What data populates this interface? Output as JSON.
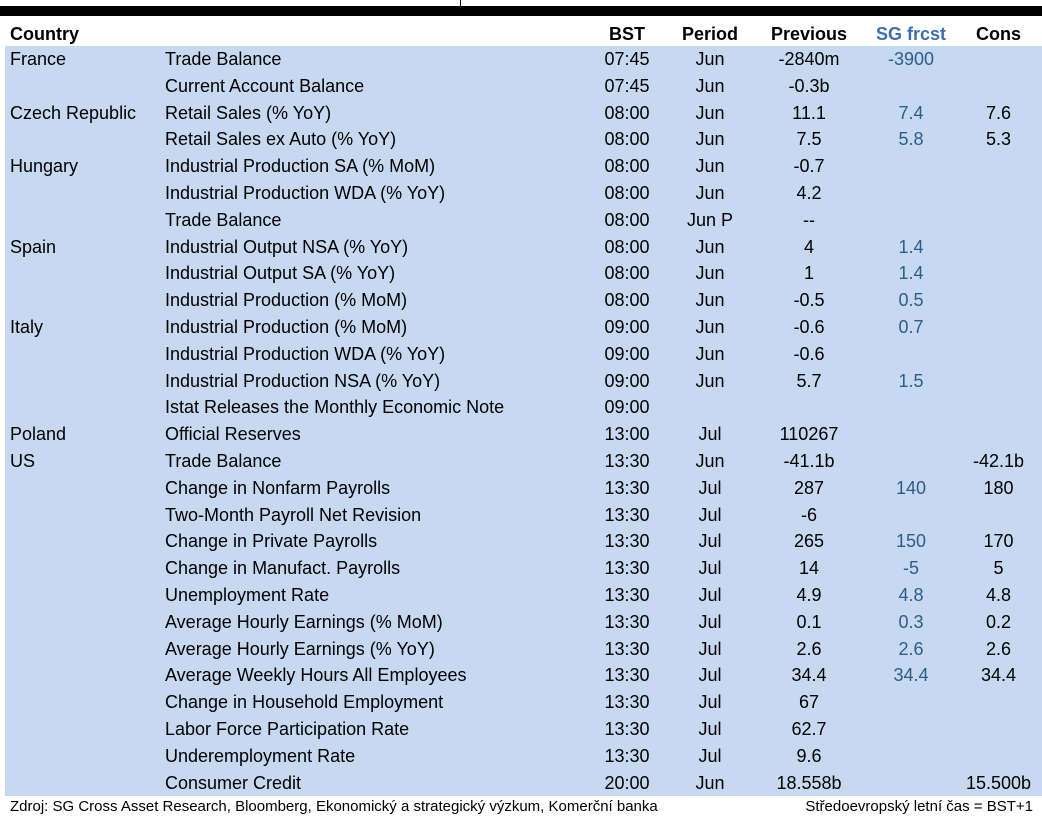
{
  "header": {
    "country": "Country",
    "bst": "BST",
    "period": "Period",
    "previous": "Previous",
    "sg_forecast": "SG frcst",
    "consensus": "Cons"
  },
  "rows": [
    {
      "country": "France",
      "indicator": "Trade Balance",
      "bst": "07:45",
      "period": "Jun",
      "previous": "-2840m",
      "sg": "-3900",
      "cons": ""
    },
    {
      "country": "",
      "indicator": "Current Account Balance",
      "bst": "07:45",
      "period": "Jun",
      "previous": "-0.3b",
      "sg": "",
      "cons": ""
    },
    {
      "country": "Czech Republic",
      "indicator": "Retail Sales (% YoY)",
      "bst": "08:00",
      "period": "Jun",
      "previous": "11.1",
      "sg": "7.4",
      "cons": "7.6"
    },
    {
      "country": "",
      "indicator": "Retail Sales ex Auto (% YoY)",
      "bst": "08:00",
      "period": "Jun",
      "previous": "7.5",
      "sg": "5.8",
      "cons": "5.3"
    },
    {
      "country": "Hungary",
      "indicator": "Industrial Production SA (% MoM)",
      "bst": "08:00",
      "period": "Jun",
      "previous": "-0.7",
      "sg": "",
      "cons": ""
    },
    {
      "country": "",
      "indicator": "Industrial Production WDA (% YoY)",
      "bst": "08:00",
      "period": "Jun",
      "previous": "4.2",
      "sg": "",
      "cons": ""
    },
    {
      "country": "",
      "indicator": "Trade Balance",
      "bst": "08:00",
      "period": "Jun P",
      "previous": "--",
      "sg": "",
      "cons": ""
    },
    {
      "country": "Spain",
      "indicator": "Industrial Output NSA (% YoY)",
      "bst": "08:00",
      "period": "Jun",
      "previous": "4",
      "sg": "1.4",
      "cons": ""
    },
    {
      "country": "",
      "indicator": "Industrial Output SA (% YoY)",
      "bst": "08:00",
      "period": "Jun",
      "previous": "1",
      "sg": "1.4",
      "cons": ""
    },
    {
      "country": "",
      "indicator": "Industrial Production (% MoM)",
      "bst": "08:00",
      "period": "Jun",
      "previous": "-0.5",
      "sg": "0.5",
      "cons": ""
    },
    {
      "country": "Italy",
      "indicator": "Industrial Production (% MoM)",
      "bst": "09:00",
      "period": "Jun",
      "previous": "-0.6",
      "sg": "0.7",
      "cons": ""
    },
    {
      "country": "",
      "indicator": "Industrial Production WDA (% YoY)",
      "bst": "09:00",
      "period": "Jun",
      "previous": "-0.6",
      "sg": "",
      "cons": ""
    },
    {
      "country": "",
      "indicator": "Industrial Production NSA (% YoY)",
      "bst": "09:00",
      "period": "Jun",
      "previous": "5.7",
      "sg": "1.5",
      "cons": ""
    },
    {
      "country": "",
      "indicator": "Istat Releases the Monthly Economic Note",
      "bst": "09:00",
      "period": "",
      "previous": "",
      "sg": "",
      "cons": ""
    },
    {
      "country": "Poland",
      "indicator": "Official Reserves",
      "bst": "13:00",
      "period": "Jul",
      "previous": "110267",
      "sg": "",
      "cons": ""
    },
    {
      "country": "US",
      "indicator": "Trade Balance",
      "bst": "13:30",
      "period": "Jun",
      "previous": "-41.1b",
      "sg": "",
      "cons": "-42.1b"
    },
    {
      "country": "",
      "indicator": "Change in Nonfarm Payrolls",
      "bst": "13:30",
      "period": "Jul",
      "previous": "287",
      "sg": "140",
      "cons": "180"
    },
    {
      "country": "",
      "indicator": "Two-Month Payroll Net Revision",
      "bst": "13:30",
      "period": "Jul",
      "previous": "-6",
      "sg": "",
      "cons": ""
    },
    {
      "country": "",
      "indicator": "Change in Private Payrolls",
      "bst": "13:30",
      "period": "Jul",
      "previous": "265",
      "sg": "150",
      "cons": "170"
    },
    {
      "country": "",
      "indicator": "Change in Manufact. Payrolls",
      "bst": "13:30",
      "period": "Jul",
      "previous": "14",
      "sg": "-5",
      "cons": "5"
    },
    {
      "country": "",
      "indicator": "Unemployment Rate",
      "bst": "13:30",
      "period": "Jul",
      "previous": "4.9",
      "sg": "4.8",
      "cons": "4.8"
    },
    {
      "country": "",
      "indicator": "Average Hourly Earnings (% MoM)",
      "bst": "13:30",
      "period": "Jul",
      "previous": "0.1",
      "sg": "0.3",
      "cons": "0.2"
    },
    {
      "country": "",
      "indicator": "Average Hourly Earnings (% YoY)",
      "bst": "13:30",
      "period": "Jul",
      "previous": "2.6",
      "sg": "2.6",
      "cons": "2.6"
    },
    {
      "country": "",
      "indicator": "Average Weekly Hours All Employees",
      "bst": "13:30",
      "period": "Jul",
      "previous": "34.4",
      "sg": "34.4",
      "cons": "34.4"
    },
    {
      "country": "",
      "indicator": "Change in Household Employment",
      "bst": "13:30",
      "period": "Jul",
      "previous": "67",
      "sg": "",
      "cons": ""
    },
    {
      "country": "",
      "indicator": "Labor Force Participation Rate",
      "bst": "13:30",
      "period": "Jul",
      "previous": "62.7",
      "sg": "",
      "cons": ""
    },
    {
      "country": "",
      "indicator": "Underemployment Rate",
      "bst": "13:30",
      "period": "Jul",
      "previous": "9.6",
      "sg": "",
      "cons": ""
    },
    {
      "country": "",
      "indicator": "Consumer Credit",
      "bst": "20:00",
      "period": "Jun",
      "previous": "18.558b",
      "sg": "",
      "cons": "15.500b"
    }
  ],
  "footer": {
    "source": "Zdroj: SG Cross Asset Research, Bloomberg, Ekonomický a strategický výzkum, Komerční banka",
    "timezone_note": "Středoevropský letní čas = BST+1"
  },
  "colors": {
    "row_background": "#c6d9f0",
    "sg_forecast_text": "#2e5c8a",
    "top_rule": "#000000"
  }
}
